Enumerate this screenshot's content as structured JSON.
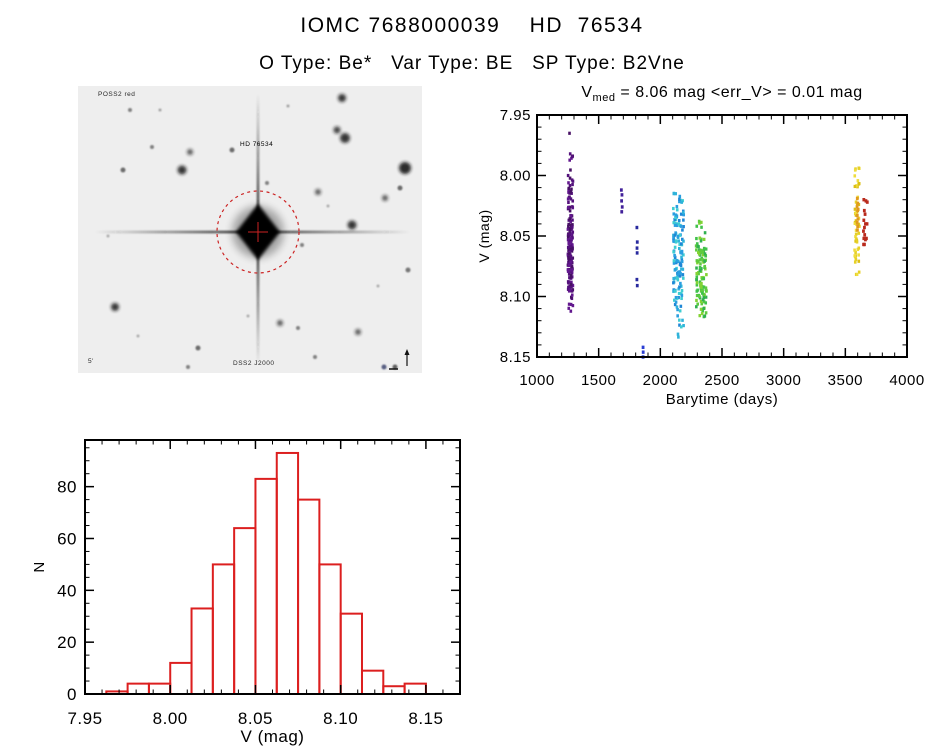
{
  "header": {
    "title": "IOMC 7688000039    HD  76534",
    "subtitle": "O Type: Be*   Var Type: BE   SP Type: B2Vne"
  },
  "finder_chart": {
    "bg_color": "#eeeeee",
    "marker_color": "#cc2222",
    "label_top_left": "POSS2 red",
    "label_target": "HD 76534",
    "label_bottom_center": "DSS2 J2000",
    "label_bottom_left": "5'",
    "blobs": [
      [
        264,
        12,
        4,
        0.85
      ],
      [
        259,
        44,
        3.5,
        0.8
      ],
      [
        267,
        52,
        5,
        0.85
      ],
      [
        327,
        82,
        6,
        0.9
      ],
      [
        104,
        84,
        4.5,
        0.85
      ],
      [
        52,
        24,
        2,
        0.5
      ],
      [
        74,
        61,
        2,
        0.5
      ],
      [
        154,
        64,
        2.5,
        0.6
      ],
      [
        112,
        66,
        3,
        0.7
      ],
      [
        45,
        84,
        2.5,
        0.6
      ],
      [
        189,
        97,
        2,
        0.5
      ],
      [
        240,
        106,
        3,
        0.7
      ],
      [
        307,
        112,
        3,
        0.7
      ],
      [
        322,
        102,
        2.5,
        0.6
      ],
      [
        274,
        139,
        4.5,
        0.85
      ],
      [
        224,
        159,
        2,
        0.5
      ],
      [
        330,
        184,
        2.5,
        0.55
      ],
      [
        37,
        221,
        4,
        0.85
      ],
      [
        202,
        237,
        3,
        0.7
      ],
      [
        220,
        242,
        2,
        0.5
      ],
      [
        280,
        246,
        3,
        0.7
      ],
      [
        120,
        262,
        2.5,
        0.6
      ],
      [
        237,
        271,
        2,
        0.5
      ],
      [
        317,
        281,
        2.5,
        0.65
      ],
      [
        110,
        281,
        2,
        0.5
      ],
      [
        82,
        24,
        1.5,
        0.35
      ],
      [
        210,
        20,
        1.5,
        0.35
      ],
      [
        30,
        150,
        1.5,
        0.3
      ],
      [
        300,
        200,
        1.5,
        0.3
      ],
      [
        170,
        230,
        1.5,
        0.3
      ],
      [
        60,
        250,
        1.5,
        0.3
      ],
      [
        250,
        120,
        1.5,
        0.3
      ]
    ]
  },
  "chart_data": [
    {
      "type": "scatter",
      "title_prefix": "V",
      "title_sub": "med",
      "title_rest": " = 8.06 mag <err_V> = 0.01 mag",
      "xlabel": "Barytime (days)",
      "ylabel": "V (mag)",
      "xlim": [
        1000,
        4000
      ],
      "ylim": [
        7.95,
        8.15
      ],
      "y_inverted_note": "magnitude axis increases downward",
      "xticks": [
        "1000",
        "1500",
        "2000",
        "2500",
        "3000",
        "3500",
        "4000"
      ],
      "yticks": [
        "7.95",
        "8.00",
        "8.05",
        "8.10",
        "8.15"
      ],
      "x_minor_step": 100,
      "y_minor_step": 0.01,
      "grid": false,
      "clusters": [
        {
          "name": "epoch-1270-purple",
          "t": [
            1250,
            1292
          ],
          "mean": 8.057,
          "sd": 0.034,
          "clip": [
            7.961,
            8.117
          ],
          "n": 175,
          "colors": [
            "#54117c",
            "#471064",
            "#62188e"
          ]
        },
        {
          "name": "epoch-2150-cyan",
          "t": [
            2105,
            2190
          ],
          "mean": 8.058,
          "sd": 0.03,
          "clip": [
            8.014,
            8.136
          ],
          "n": 135,
          "colors": [
            "#2fb3da",
            "#1f87d6",
            "#3ecdd2",
            "#2a9fe0"
          ]
        },
        {
          "name": "epoch-2330-green",
          "t": [
            2290,
            2375
          ],
          "mean": 8.079,
          "sd": 0.024,
          "clip": [
            8.037,
            8.123
          ],
          "n": 115,
          "colors": [
            "#3fc24a",
            "#5fcb3e",
            "#83d334",
            "#2fb050"
          ]
        },
        {
          "name": "epoch-3595-yellow",
          "t": [
            3575,
            3615
          ],
          "mean": 8.034,
          "sd": 0.027,
          "clip": [
            7.984,
            8.082
          ],
          "n": 50,
          "colors": [
            "#e6d026",
            "#eedc3c",
            "#dcbf14"
          ]
        }
      ],
      "point_groups": [
        {
          "name": "epoch-1690-violet",
          "color": "#42219a",
          "points": [
            [
              1684,
              8.012
            ],
            [
              1689,
              8.016
            ],
            [
              1686,
              8.021
            ],
            [
              1691,
              8.026
            ],
            [
              1687,
              8.03
            ]
          ]
        },
        {
          "name": "epoch-1812-navy",
          "color": "#282a9e",
          "points": [
            [
              1810,
              8.043
            ],
            [
              1813,
              8.055
            ],
            [
              1811,
              8.06
            ],
            [
              1812,
              8.064
            ],
            [
              1810,
              8.086
            ],
            [
              1813,
              8.091
            ]
          ]
        },
        {
          "name": "epoch-1861-blue",
          "color": "#2b3fd4",
          "points": [
            [
              1860,
              8.142
            ],
            [
              1861,
              8.146
            ],
            [
              1860,
              8.15
            ]
          ]
        },
        {
          "name": "epoch-3600-orange",
          "color": "#e09a1e",
          "points": [
            [
              3597,
              8.019
            ],
            [
              3601,
              8.023
            ],
            [
              3595,
              8.026
            ],
            [
              3600,
              8.029
            ],
            [
              3597,
              8.033
            ],
            [
              3602,
              8.036
            ],
            [
              3596,
              8.039
            ],
            [
              3600,
              8.042
            ],
            [
              3604,
              8.028
            ],
            [
              3598,
              8.045
            ]
          ]
        },
        {
          "name": "epoch-3655-red",
          "color": "#b92a1c",
          "points": [
            [
              3650,
              8.02
            ],
            [
              3667,
              8.021
            ],
            [
              3678,
              8.022
            ],
            [
              3654,
              8.029
            ],
            [
              3660,
              8.032
            ],
            [
              3650,
              8.037
            ],
            [
              3663,
              8.04
            ],
            [
              3655,
              8.043
            ],
            [
              3647,
              8.046
            ],
            [
              3657,
              8.049
            ],
            [
              3650,
              8.052
            ],
            [
              3663,
              8.053
            ],
            [
              3655,
              8.057
            ],
            [
              3648,
              8.057
            ],
            [
              3676,
              8.04
            ],
            [
              3671,
              8.052
            ]
          ]
        }
      ]
    },
    {
      "type": "histogram",
      "color": "#dc1f1f",
      "xlabel": "V (mag)",
      "ylabel": "N",
      "xlim": [
        7.95,
        8.17
      ],
      "ylim": [
        0,
        98
      ],
      "xticks": [
        "7.95",
        "8.00",
        "8.05",
        "8.10",
        "8.15"
      ],
      "yticks": [
        "0",
        "20",
        "40",
        "60",
        "80"
      ],
      "x_minor_step": 0.01,
      "y_minor_step": 5,
      "bin_start": 7.9625,
      "bin_width": 0.0125,
      "counts": [
        1,
        4,
        4,
        12,
        33,
        50,
        64,
        83,
        93,
        75,
        50,
        31,
        9,
        3,
        4
      ]
    }
  ]
}
